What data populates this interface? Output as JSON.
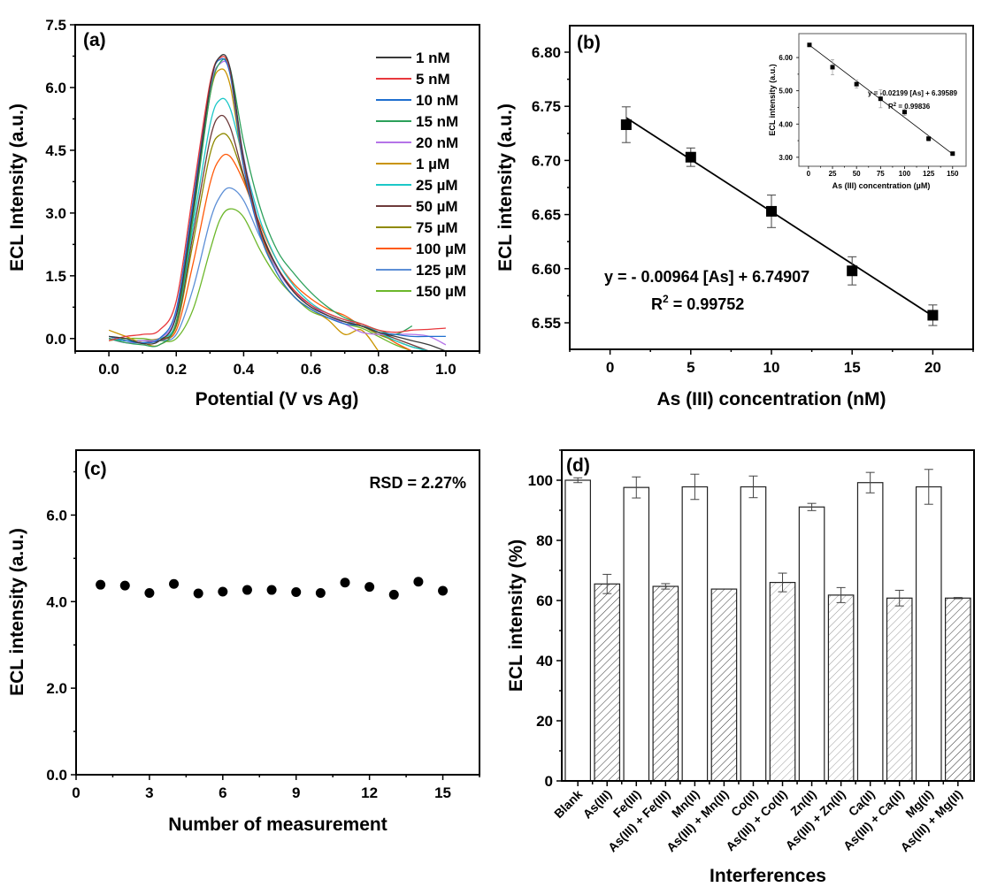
{
  "chart_data": [
    {
      "id": "a",
      "type": "line",
      "panel_label": "(a)",
      "xlabel": "Potential (V vs Ag)",
      "ylabel": "ECL Intensity (a.u.)",
      "xlim": [
        -0.1,
        1.1
      ],
      "ylim": [
        -0.3,
        7.5
      ],
      "xticks": [
        0.0,
        0.2,
        0.4,
        0.6,
        0.8,
        1.0
      ],
      "xtick_labels": [
        "0.0",
        "0.2",
        "0.4",
        "0.6",
        "0.8",
        "1.0"
      ],
      "yticks": [
        0.0,
        1.5,
        3.0,
        4.5,
        6.0,
        7.5
      ],
      "ytick_labels": [
        "0.0",
        "1.5",
        "3.0",
        "4.5",
        "6.0",
        "7.5"
      ],
      "grid": false,
      "legend_position": "top-right",
      "x": [
        0.0,
        0.05,
        0.1,
        0.15,
        0.2,
        0.25,
        0.3,
        0.33,
        0.36,
        0.4,
        0.45,
        0.5,
        0.55,
        0.6,
        0.65,
        0.7,
        0.75,
        0.8,
        0.85,
        0.9,
        0.95,
        1.0
      ],
      "series": [
        {
          "name": "1 nM",
          "color": "#3a3a3a",
          "values": [
            0.05,
            0.0,
            -0.12,
            -0.05,
            0.55,
            3.1,
            6.0,
            6.74,
            6.45,
            4.3,
            2.6,
            1.7,
            1.1,
            0.75,
            0.55,
            0.4,
            0.3,
            0.15,
            0.05,
            -0.05,
            -0.15,
            -0.3
          ]
        },
        {
          "name": "5 nM",
          "color": "#e8383d",
          "values": [
            -0.05,
            0.05,
            0.1,
            0.2,
            0.9,
            3.5,
            6.1,
            6.71,
            6.4,
            4.25,
            2.55,
            1.7,
            1.15,
            0.8,
            0.6,
            0.45,
            0.35,
            0.2,
            0.15,
            0.2,
            0.22,
            0.25
          ]
        },
        {
          "name": "10 nM",
          "color": "#1f6fcf",
          "values": [
            0.05,
            -0.05,
            -0.1,
            0.0,
            0.7,
            3.3,
            6.05,
            6.67,
            6.3,
            4.1,
            2.45,
            1.55,
            1.0,
            0.7,
            0.5,
            0.35,
            0.3,
            0.15,
            0.1,
            0.05,
            0.05,
            0.05
          ]
        },
        {
          "name": "15 nM",
          "color": "#2ca05a",
          "values": [
            0.0,
            -0.1,
            -0.15,
            -0.15,
            0.4,
            2.9,
            5.8,
            6.6,
            6.45,
            4.7,
            3.1,
            2.1,
            1.55,
            1.1,
            0.75,
            0.5,
            0.35,
            0.2,
            0.1,
            0.3,
            null,
            null
          ]
        },
        {
          "name": "20 nM",
          "color": "#b574e8",
          "values": [
            0.0,
            -0.1,
            -0.05,
            0.0,
            0.6,
            3.2,
            5.95,
            6.57,
            6.35,
            4.35,
            2.6,
            1.65,
            1.1,
            0.8,
            0.55,
            0.35,
            0.15,
            0.1,
            0.1,
            0.1,
            0.05,
            -0.15
          ]
        },
        {
          "name": "1 µM",
          "color": "#c99400",
          "values": [
            0.2,
            0.05,
            -0.1,
            -0.15,
            0.4,
            3.0,
            5.8,
            6.43,
            6.05,
            4.1,
            2.5,
            1.55,
            1.0,
            0.7,
            0.45,
            0.1,
            0.2,
            -0.3,
            null,
            null,
            null,
            null
          ]
        },
        {
          "name": "25 µM",
          "color": "#1cc8c8",
          "values": [
            0.0,
            -0.05,
            -0.05,
            0.0,
            0.4,
            2.7,
            5.1,
            5.71,
            5.5,
            4.25,
            2.8,
            1.85,
            1.25,
            0.85,
            0.6,
            0.45,
            0.35,
            0.15,
            -0.05,
            -0.2,
            -0.3,
            null
          ]
        },
        {
          "name": "50 µM",
          "color": "#6e3b3b",
          "values": [
            0.0,
            -0.05,
            -0.05,
            -0.05,
            0.35,
            2.5,
            4.75,
            5.32,
            5.05,
            3.9,
            2.6,
            1.7,
            1.15,
            0.8,
            0.55,
            0.4,
            0.3,
            0.15,
            0.0,
            -0.15,
            -0.3,
            null
          ]
        },
        {
          "name": "75 µM",
          "color": "#8f8a00",
          "values": [
            0.0,
            -0.05,
            -0.05,
            0.0,
            0.3,
            2.3,
            4.4,
            4.87,
            4.75,
            3.85,
            2.6,
            1.7,
            1.15,
            0.8,
            0.55,
            0.4,
            0.3,
            0.1,
            -0.05,
            -0.2,
            -0.3,
            null
          ]
        },
        {
          "name": "100 µM",
          "color": "#ff5a0a",
          "values": [
            0.0,
            -0.05,
            -0.05,
            0.0,
            0.2,
            1.8,
            3.7,
            4.3,
            4.35,
            3.75,
            2.7,
            1.85,
            1.3,
            0.95,
            0.7,
            0.55,
            0.3,
            0.15,
            -0.1,
            -0.3,
            null,
            null
          ]
        },
        {
          "name": "125 µM",
          "color": "#5d8fd6",
          "values": [
            0.0,
            -0.1,
            -0.1,
            -0.05,
            0.1,
            1.2,
            2.8,
            3.4,
            3.6,
            3.3,
            2.4,
            1.65,
            1.15,
            0.8,
            0.55,
            0.4,
            0.35,
            0.1,
            -0.05,
            -0.2,
            -0.3,
            null
          ]
        },
        {
          "name": "150 µM",
          "color": "#6cb72a",
          "values": [
            -0.05,
            0.0,
            0.0,
            -0.05,
            0.0,
            0.7,
            2.1,
            2.85,
            3.1,
            2.9,
            2.1,
            1.45,
            1.0,
            0.65,
            0.5,
            0.35,
            0.25,
            0.05,
            -0.15,
            -0.3,
            null,
            null
          ]
        }
      ]
    },
    {
      "id": "b",
      "type": "scatter",
      "panel_label": "(b)",
      "xlabel": "As (III) concentration (nM)",
      "ylabel": "ECL intensity (a.u.)",
      "xlim": [
        -2.5,
        22.5
      ],
      "ylim": [
        6.5255,
        6.8245
      ],
      "xticks": [
        0,
        5,
        10,
        15,
        20
      ],
      "xtick_labels": [
        "0",
        "5",
        "10",
        "15",
        "20"
      ],
      "yticks": [
        6.55,
        6.6,
        6.65,
        6.7,
        6.75,
        6.8
      ],
      "ytick_labels": [
        "6.55",
        "6.60",
        "6.65",
        "6.70",
        "6.75",
        "6.80"
      ],
      "grid": false,
      "x": [
        1,
        5,
        10,
        15,
        20
      ],
      "values": [
        6.733,
        6.703,
        6.653,
        6.598,
        6.557
      ],
      "errors": [
        0.0165,
        0.0085,
        0.015,
        0.013,
        0.0095
      ],
      "fit": {
        "slope": -0.00964,
        "intercept": 6.74907,
        "x_range": [
          1,
          20
        ]
      },
      "annotations": [
        "y = - 0.00964 [As] + 6.74907",
        "R",
        "2",
        " = 0.99752"
      ],
      "inset": {
        "type": "scatter",
        "xlabel": "As (III) concentration (µM)",
        "ylabel": "ECL intensity (a.u.)",
        "xlim": [
          -10,
          164
        ],
        "ylim": [
          2.73,
          6.72
        ],
        "xticks": [
          0,
          25,
          50,
          75,
          100,
          125,
          150
        ],
        "xtick_labels": [
          "0",
          "25",
          "50",
          "75",
          "100",
          "125",
          "150"
        ],
        "yticks": [
          3.0,
          4.0,
          5.0,
          6.0
        ],
        "ytick_labels": [
          "3.00",
          "4.00",
          "5.00",
          "6.00"
        ],
        "x": [
          1,
          25,
          50,
          75,
          100,
          125,
          150
        ],
        "values": [
          6.38,
          5.71,
          5.2,
          4.76,
          4.36,
          3.56,
          3.11
        ],
        "errors": [
          0.02,
          0.23,
          0.12,
          0.27,
          0.1,
          0.07,
          0.03
        ],
        "fit": {
          "slope": -0.02199,
          "intercept": 6.39589,
          "x_range": [
            1,
            150
          ]
        },
        "annotations": [
          "y = -0.02199 [As] + 6.39589",
          "R",
          "2",
          " = 0.99836"
        ]
      }
    },
    {
      "id": "c",
      "type": "scatter",
      "panel_label": "(c)",
      "xlabel": "Number of measurement",
      "ylabel": "ECL intensity (a.u.)",
      "xlim": [
        0,
        16.5
      ],
      "ylim": [
        0,
        7.5
      ],
      "xticks": [
        0,
        3,
        6,
        9,
        12,
        15
      ],
      "xtick_labels": [
        "0",
        "3",
        "6",
        "9",
        "12",
        "15"
      ],
      "yticks": [
        0.0,
        2.0,
        4.0,
        6.0
      ],
      "ytick_labels": [
        "0.0",
        "2.0",
        "4.0",
        "6.0"
      ],
      "grid": false,
      "x": [
        1,
        2,
        3,
        4,
        5,
        6,
        7,
        8,
        9,
        10,
        11,
        12,
        13,
        14,
        15
      ],
      "values": [
        4.39,
        4.37,
        4.2,
        4.41,
        4.19,
        4.23,
        4.27,
        4.27,
        4.22,
        4.2,
        4.44,
        4.34,
        4.16,
        4.46,
        4.25
      ],
      "annotations": [
        "RSD = 2.27%"
      ]
    },
    {
      "id": "d",
      "type": "bar",
      "panel_label": "(d)",
      "xlabel": "Interferences",
      "ylabel": "ECL intensity (%)",
      "ylim": [
        0,
        110
      ],
      "yticks": [
        0,
        20,
        40,
        60,
        80,
        100
      ],
      "ytick_labels": [
        "0",
        "20",
        "40",
        "60",
        "80",
        "100"
      ],
      "grid": false,
      "categories": [
        "Blank",
        "As(III)",
        "Fe(III)",
        "As(III) + Fe(III)",
        "Mn(II)",
        "As(III) + Mn(II)",
        "Co(II)",
        "As(III) + Co(II)",
        "Zn(II)",
        "As(III) + Zn(II)",
        "Ca(II)",
        "As(III) + Ca(II)",
        "Mg(II)",
        "As(III) + Mg(II)"
      ],
      "values": [
        100.0,
        65.5,
        97.6,
        64.7,
        97.8,
        63.8,
        97.8,
        66.0,
        91.1,
        61.8,
        99.2,
        60.8,
        97.8,
        60.8
      ],
      "errors": [
        0.8,
        3.2,
        3.5,
        0.9,
        4.2,
        0.0,
        3.6,
        3.1,
        1.2,
        2.5,
        3.4,
        2.6,
        5.8,
        0.2
      ],
      "hatched": [
        false,
        true,
        false,
        true,
        false,
        true,
        false,
        true,
        false,
        true,
        false,
        true,
        false,
        true
      ]
    }
  ]
}
